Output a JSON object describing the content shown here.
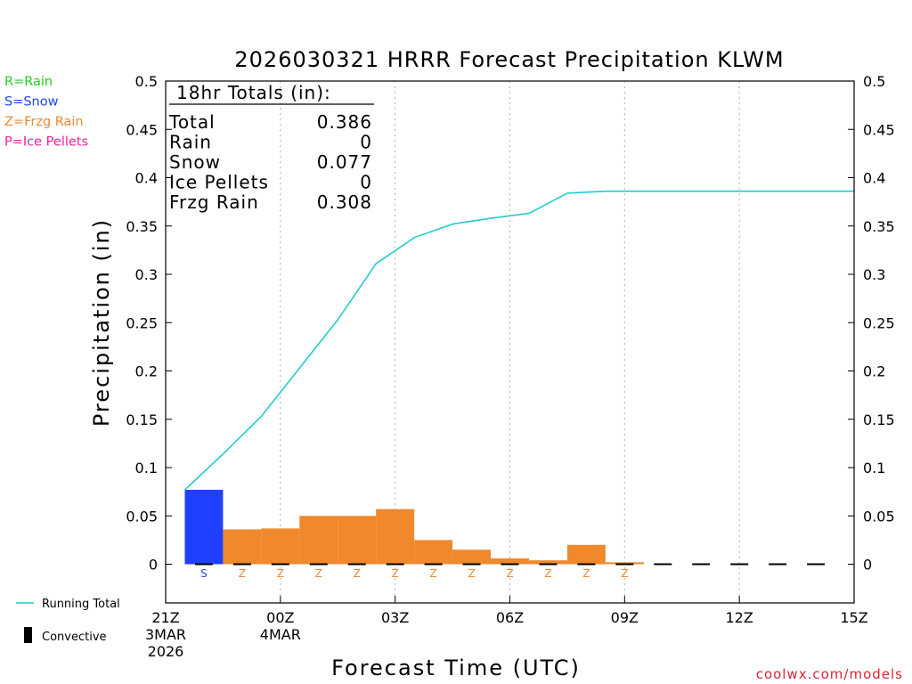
{
  "chart_data": {
    "type": "bar",
    "title": "2026030321 HRRR Forecast Precipitation KLWM",
    "ylabel": "Precipitation (in)",
    "xlabel": "Forecast Time (UTC)",
    "ylim": [
      -0.04,
      0.5
    ],
    "yticks": [
      0,
      0.05,
      0.1,
      0.15,
      0.2,
      0.25,
      0.3,
      0.35,
      0.4,
      0.45,
      0.5
    ],
    "ytick_labels": [
      "0",
      "0.05",
      "0.1",
      "0.15",
      "0.2",
      "0.25",
      "0.3",
      "0.35",
      "0.4",
      "0.45",
      "0.5"
    ],
    "xlim_hours": [
      0,
      18
    ],
    "xticks": [
      {
        "hour": 0,
        "lines": [
          "21Z",
          "3MAR",
          "2026"
        ]
      },
      {
        "hour": 3,
        "lines": [
          "00Z",
          "4MAR"
        ]
      },
      {
        "hour": 6,
        "lines": [
          "03Z"
        ]
      },
      {
        "hour": 9,
        "lines": [
          "06Z"
        ]
      },
      {
        "hour": 12,
        "lines": [
          "09Z"
        ]
      },
      {
        "hour": 15,
        "lines": [
          "12Z"
        ]
      },
      {
        "hour": 18,
        "lines": [
          "15Z"
        ]
      }
    ],
    "grid_hours": [
      3,
      6,
      9,
      12,
      15
    ],
    "bars": [
      {
        "start": 0.5,
        "end": 1.5,
        "value": 0.077,
        "ptype": "S"
      },
      {
        "start": 1.5,
        "end": 2.5,
        "value": 0.036,
        "ptype": "Z"
      },
      {
        "start": 2.5,
        "end": 3.5,
        "value": 0.037,
        "ptype": "Z"
      },
      {
        "start": 3.5,
        "end": 4.5,
        "value": 0.05,
        "ptype": "Z"
      },
      {
        "start": 4.5,
        "end": 5.5,
        "value": 0.05,
        "ptype": "Z"
      },
      {
        "start": 5.5,
        "end": 6.5,
        "value": 0.057,
        "ptype": "Z"
      },
      {
        "start": 6.5,
        "end": 7.5,
        "value": 0.025,
        "ptype": "Z"
      },
      {
        "start": 7.5,
        "end": 8.5,
        "value": 0.015,
        "ptype": "Z"
      },
      {
        "start": 8.5,
        "end": 9.5,
        "value": 0.006,
        "ptype": "Z"
      },
      {
        "start": 9.5,
        "end": 10.5,
        "value": 0.004,
        "ptype": "Z"
      },
      {
        "start": 10.5,
        "end": 11.5,
        "value": 0.02,
        "ptype": "Z"
      },
      {
        "start": 11.5,
        "end": 12.5,
        "value": 0.002,
        "ptype": "Z"
      }
    ],
    "convective_hours": [
      1,
      2,
      3,
      4,
      5,
      6,
      7,
      8,
      9,
      10,
      11,
      12,
      13,
      14,
      15,
      16,
      17
    ],
    "running_total": {
      "name": "Running Total",
      "hours": [
        0.5,
        1.5,
        2.5,
        3.5,
        4.5,
        5.5,
        6.5,
        7.5,
        8.5,
        9.5,
        10.5,
        11.5,
        12.5,
        18.0
      ],
      "values": [
        0.077,
        0.114,
        0.153,
        0.203,
        0.253,
        0.311,
        0.338,
        0.352,
        0.358,
        0.363,
        0.384,
        0.386,
        0.386,
        0.386
      ]
    },
    "totals_box": {
      "header": "18hr Totals (in):",
      "rows": [
        {
          "label": "Total",
          "value": "0.386"
        },
        {
          "label": "Rain",
          "value": "0"
        },
        {
          "label": "Snow",
          "value": "0.077"
        },
        {
          "label": "Ice Pellets",
          "value": "0"
        },
        {
          "label": "Frzg Rain",
          "value": "0.308"
        }
      ]
    },
    "ptype_legend": [
      {
        "code": "R",
        "label": "R=Rain",
        "color": "#22cc22"
      },
      {
        "code": "S",
        "label": "S=Snow",
        "color": "#2244ee"
      },
      {
        "code": "Z",
        "label": "Z=Frzg Rain",
        "color": "#ee8833"
      },
      {
        "code": "P",
        "label": "P=Ice Pellets",
        "color": "#ee2299"
      }
    ],
    "series_legend": [
      {
        "label": "Running Total",
        "color": "#22cccc"
      },
      {
        "label": "Convective",
        "color": "#000000"
      }
    ],
    "colors": {
      "S": "#2040ff",
      "Z": "#f0882c",
      "running_total": "#22cccc",
      "grid": "#b0b0b0"
    },
    "credit": "coolwx.com/models"
  }
}
